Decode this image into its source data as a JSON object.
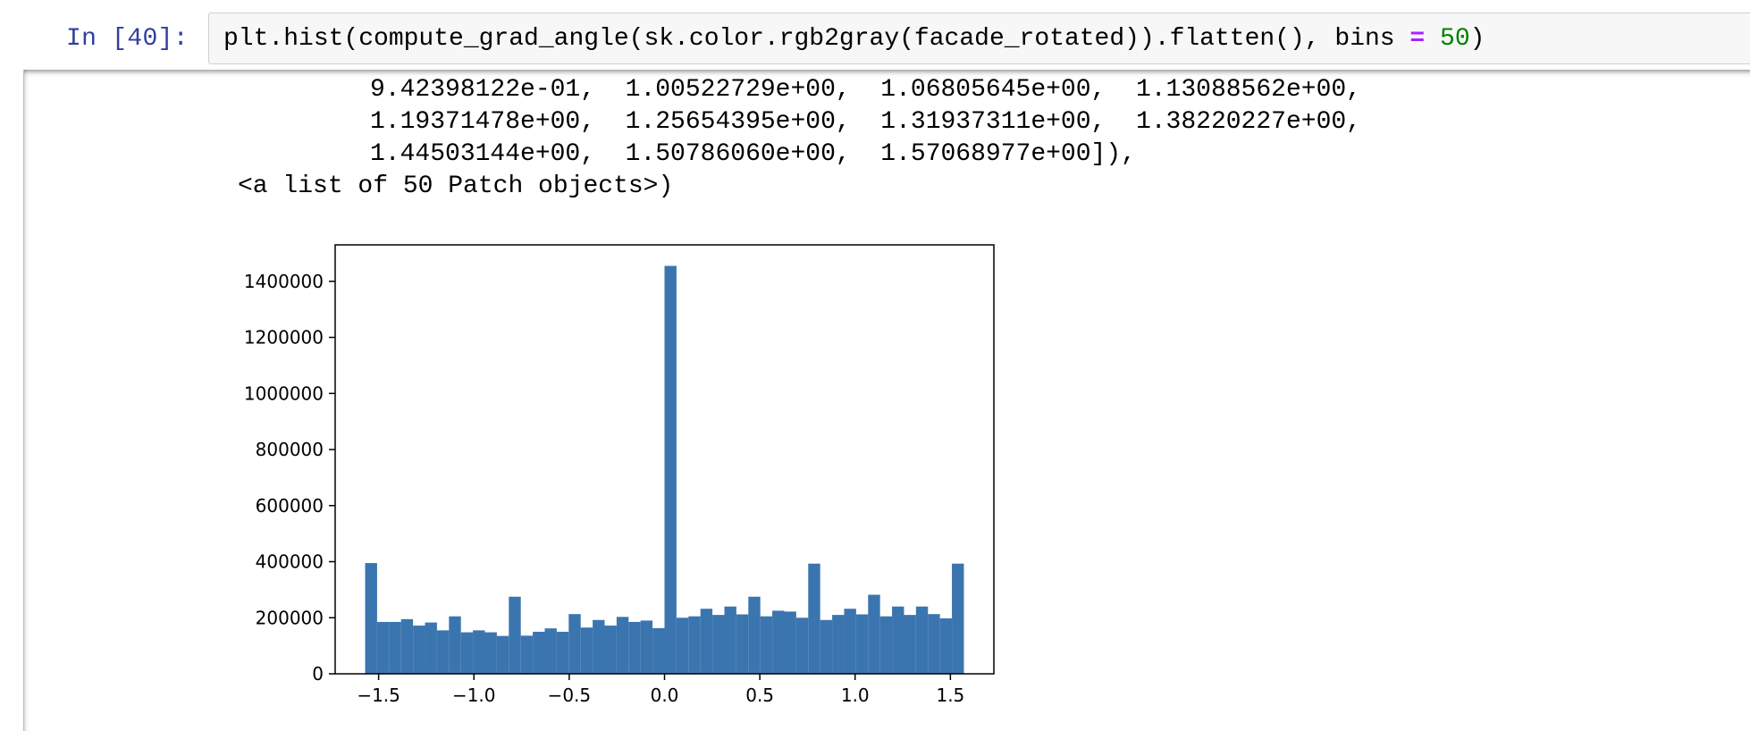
{
  "cell": {
    "prompt": "In [40]:",
    "code_before": "plt.hist(compute_grad_angle(sk.color.rgb2gray(facade_rotated)).flatten(), bins ",
    "code_op": "=",
    "code_space": " ",
    "code_num": "50",
    "code_after": ")"
  },
  "output": {
    "lines": [
      "9.42398122e-01,  1.00522729e+00,  1.06805645e+00,  1.13088562e+00,",
      "1.19371478e+00,  1.25654395e+00,  1.31937311e+00,  1.38220227e+00,",
      "1.44503144e+00,  1.50786060e+00,  1.57068977e+00]),",
      "<a list of 50 Patch objects>)"
    ]
  },
  "chart_data": {
    "type": "bar",
    "title": "",
    "xlabel": "",
    "ylabel": "",
    "bar_color": "#3b75af",
    "grid": false,
    "xlim": [
      -1.728,
      1.728
    ],
    "ylim": [
      0,
      1530000
    ],
    "bin_start": -1.5708,
    "bin_width": 0.06283,
    "values": [
      395000,
      185000,
      185000,
      195000,
      172000,
      183000,
      155000,
      205000,
      148000,
      155000,
      148000,
      135000,
      275000,
      136000,
      150000,
      162000,
      150000,
      213000,
      165000,
      192000,
      172000,
      203000,
      185000,
      190000,
      163000,
      1455000,
      200000,
      205000,
      232000,
      210000,
      240000,
      212000,
      275000,
      205000,
      225000,
      222000,
      200000,
      393000,
      192000,
      210000,
      232000,
      212000,
      282000,
      205000,
      240000,
      210000,
      240000,
      213000,
      198000,
      393000
    ],
    "xticks": [
      -1.5,
      -1.0,
      -0.5,
      0.0,
      0.5,
      1.0,
      1.5
    ],
    "xtick_labels": [
      "−1.5",
      "−1.0",
      "−0.5",
      "0.0",
      "0.5",
      "1.0",
      "1.5"
    ],
    "yticks": [
      0,
      200000,
      400000,
      600000,
      800000,
      1000000,
      1200000,
      1400000
    ],
    "ytick_labels": [
      "0",
      "200000",
      "400000",
      "600000",
      "800000",
      "1000000",
      "1200000",
      "1400000"
    ]
  }
}
